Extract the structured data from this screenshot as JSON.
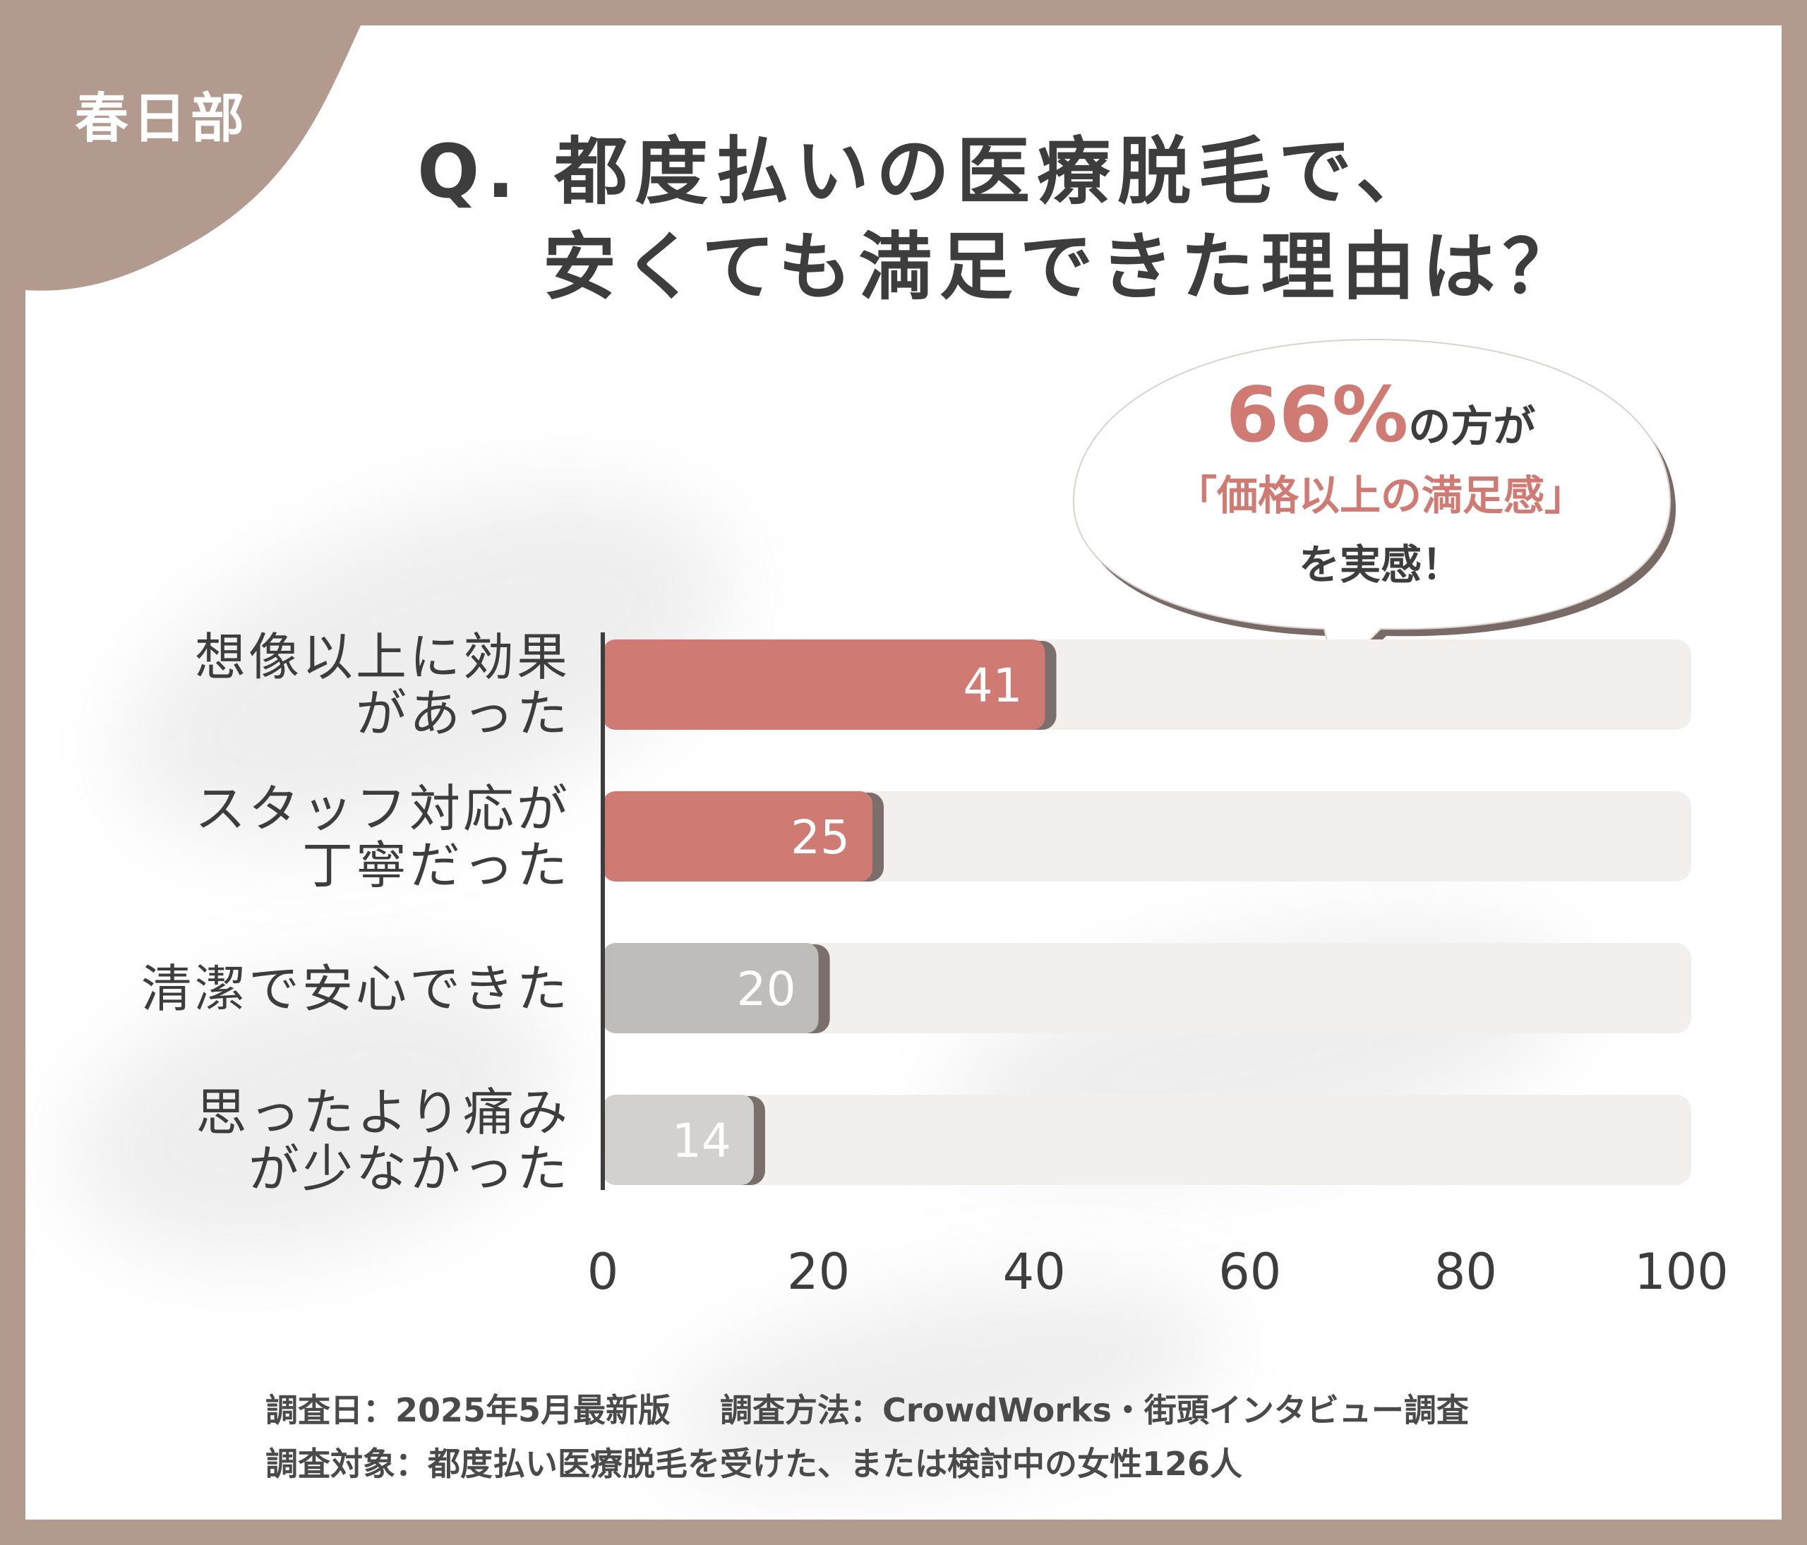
{
  "tag": "春日部",
  "title": {
    "line1": "Q. 都度払いの医療脱毛で、",
    "line2": "安くても満足できた理由は？"
  },
  "callout": {
    "percent": "66%",
    "text1": "の方が",
    "text2": "「価格以上の満足感」",
    "text3": "を実感！"
  },
  "colors": {
    "frame": "#b29a8f",
    "accent": "#d07a74",
    "bar_gray": "#bfbdbb",
    "bar_gray_light": "#d3d1cf",
    "track": "#f2efed",
    "text": "#3d3d3d"
  },
  "chart_data": {
    "type": "bar",
    "orientation": "horizontal",
    "categories": [
      [
        "想像以上に効果",
        "があった"
      ],
      [
        "スタッフ対応が",
        "丁寧だった"
      ],
      [
        "清潔で安心できた"
      ],
      [
        "思ったより痛み",
        "が少なかった"
      ]
    ],
    "values": [
      41,
      25,
      20,
      14
    ],
    "bar_colors": [
      "#d07a74",
      "#d07a74",
      "#bfbdbb",
      "#d3d1cf"
    ],
    "xlim": [
      0,
      100
    ],
    "xticks": [
      0,
      20,
      40,
      60,
      80,
      100
    ],
    "grid": false,
    "legend": "none"
  },
  "footnote": {
    "date": "調査日：2025年5月最新版",
    "method": "調査方法：CrowdWorks・街頭インタビュー調査",
    "target": "調査対象：都度払い医療脱毛を受けた、または検討中の女性126人"
  }
}
